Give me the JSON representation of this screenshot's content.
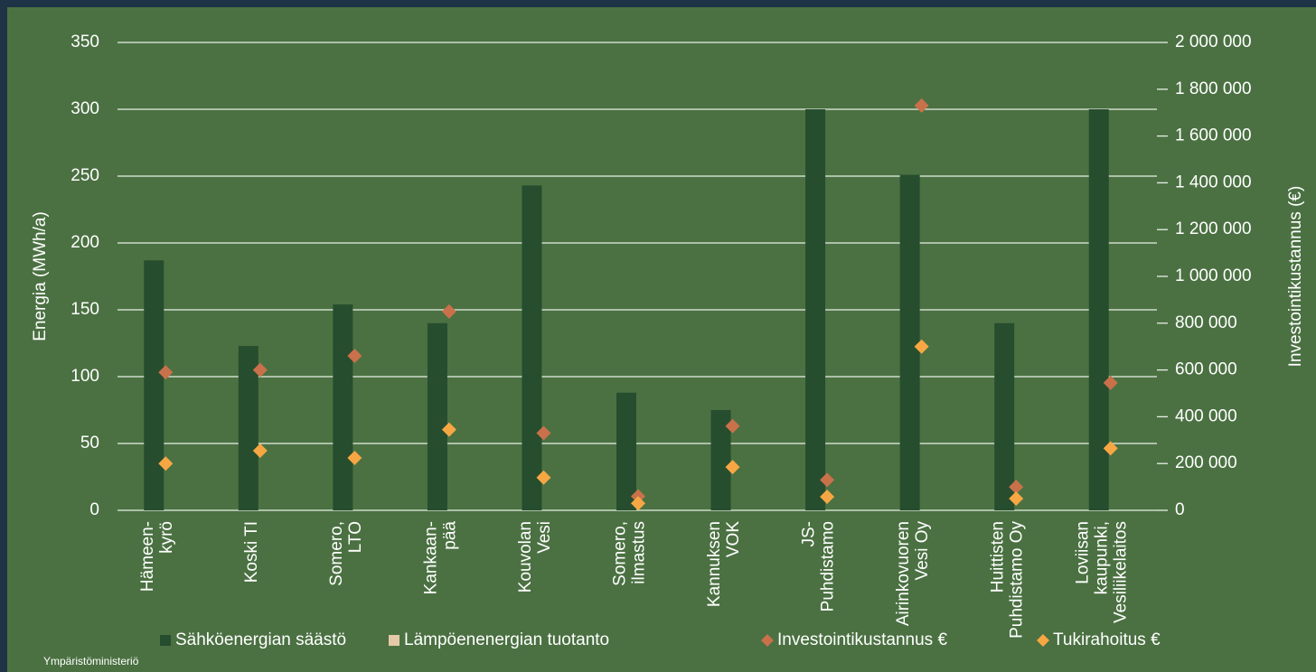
{
  "chart_data": {
    "type": "bar",
    "categories": [
      "Hämeen-\nkyrö",
      "Koski TI",
      "Somero,\nLTO",
      "Kankaan-\npää",
      "Kouvolan\nVesi",
      "Somero,\nilmastus",
      "Kannuksen\nVOK",
      "JS-\nPuhdistamo",
      "Airinkovuoren\nVesi Oy",
      "Huittisten\nPuhdistamo Oy",
      "Loviisan\nkaupunki,\nVesiliikelaitos"
    ],
    "ylabel": "Energia (MWh/a)",
    "y2label": "Investointikustannus (€)",
    "ylim": [
      0,
      350
    ],
    "yticks": [
      0,
      50,
      100,
      150,
      200,
      250,
      300,
      350
    ],
    "y2lim": [
      0,
      2000000
    ],
    "y2ticks": [
      {
        "value": 0,
        "label": "0"
      },
      {
        "value": 200000,
        "label": "200 000"
      },
      {
        "value": 400000,
        "label": "400 000"
      },
      {
        "value": 600000,
        "label": "600 000"
      },
      {
        "value": 800000,
        "label": "800 000"
      },
      {
        "value": 1000000,
        "label": "1 000 000"
      },
      {
        "value": 1200000,
        "label": "1 200 000"
      },
      {
        "value": 1400000,
        "label": "1 400 000"
      },
      {
        "value": 1600000,
        "label": "1 600 000"
      },
      {
        "value": 1800000,
        "label": "1 800 000"
      },
      {
        "value": 2000000,
        "label": "2 000 000"
      }
    ],
    "grid": true,
    "legend": "bottom",
    "series": [
      {
        "name": "Sähköenergian säästö",
        "color": "#264d2e",
        "kind": "bar",
        "values": [
          187,
          123,
          154,
          140,
          243,
          88,
          75,
          300,
          251,
          140,
          300
        ]
      },
      {
        "name": "Lämpöenenergian tuotanto",
        "color": "#e6c9a8",
        "kind": "bar",
        "values": [
          null,
          null,
          null,
          null,
          null,
          null,
          null,
          null,
          null,
          null,
          null
        ]
      },
      {
        "name": "Investointikustannus €",
        "color": "#c9714b",
        "kind": "diamond",
        "axis": "y2",
        "values": [
          590000,
          600000,
          660000,
          850000,
          330000,
          60000,
          360000,
          130000,
          1730000,
          100000,
          545000
        ]
      },
      {
        "name": "Tukirahoitus €",
        "color": "#f6a744",
        "kind": "diamond",
        "axis": "y2",
        "values": [
          200000,
          255000,
          224000,
          345000,
          140000,
          30000,
          185000,
          58000,
          700000,
          50000,
          265000
        ]
      }
    ]
  },
  "footer": {
    "logo_text": "Ympäristöministeriö"
  }
}
